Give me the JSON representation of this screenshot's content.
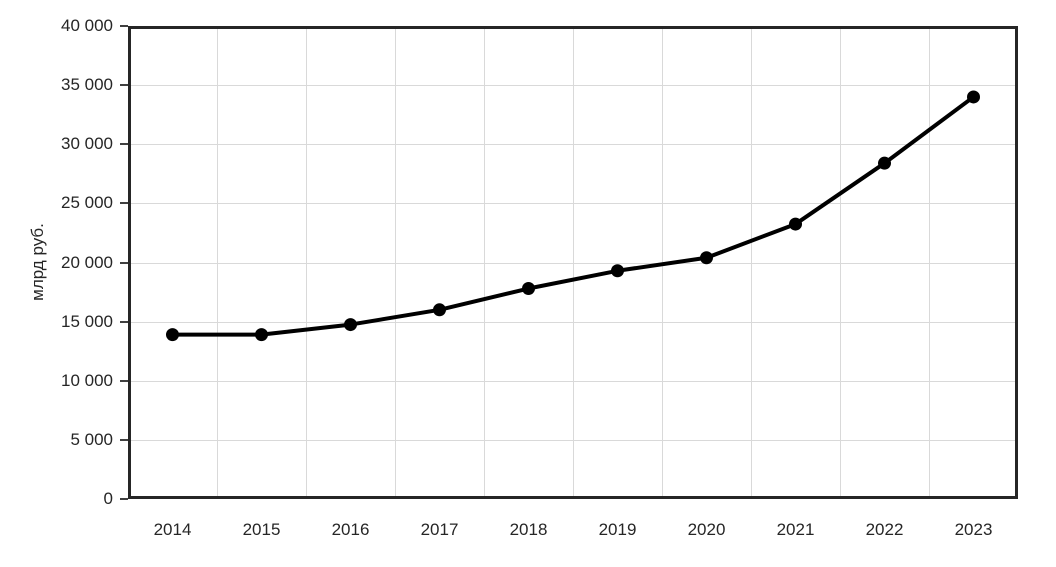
{
  "chart_data": {
    "type": "line",
    "title": "",
    "categories": [
      "2014",
      "2015",
      "2016",
      "2017",
      "2018",
      "2019",
      "2020",
      "2021",
      "2022",
      "2023"
    ],
    "values": [
      13900,
      13900,
      14750,
      16000,
      17800,
      19300,
      20400,
      23250,
      28400,
      34000
    ],
    "xlabel": "",
    "ylabel": "млрд руб.",
    "ylim": [
      0,
      40000
    ],
    "ytick_values": [
      0,
      5000,
      10000,
      15000,
      20000,
      25000,
      30000,
      35000,
      40000
    ],
    "ytick_labels": [
      "0",
      "5 000",
      "10 000",
      "15 000",
      "20 000",
      "25 000",
      "30 000",
      "35 000",
      "40 000"
    ],
    "grid": true,
    "legend": "none",
    "colors": {
      "line": "#000000",
      "marker": "#000000",
      "grid": "#d9d9d9",
      "plot_border": "#262626",
      "text": "#262626",
      "background": "#ffffff"
    }
  }
}
